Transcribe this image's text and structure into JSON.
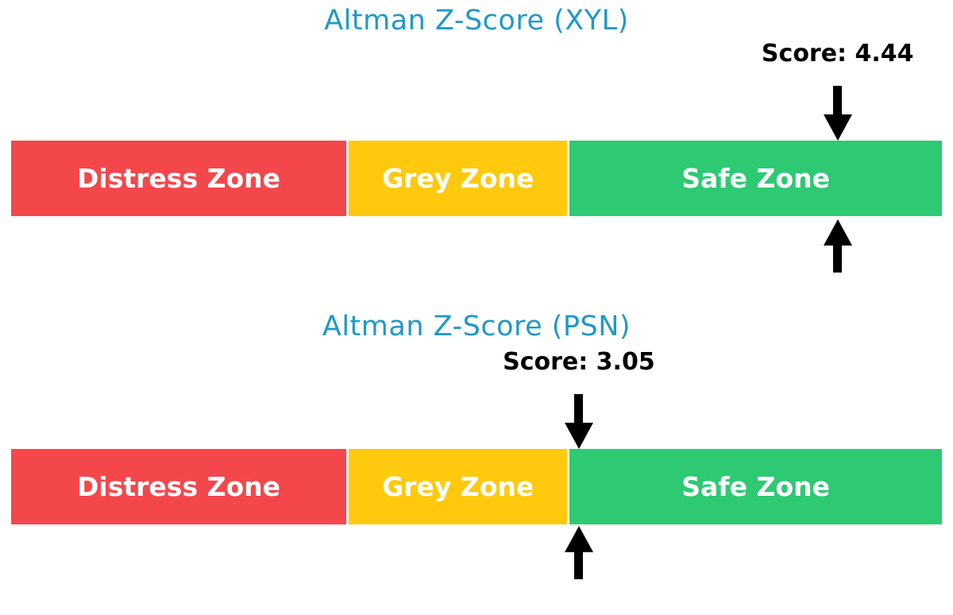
{
  "figure": {
    "background_color": "#FFFFFF",
    "title_color": "#2099C7",
    "score_text_color": "#000000",
    "zone_label_color": "#FFFFFF",
    "arrow_color": "#000000"
  },
  "chart_data": [
    {
      "type": "bar",
      "orientation": "horizontal",
      "title": "Altman Z-Score (XYL)",
      "ticker": "XYL",
      "score": 4.44,
      "score_label": "Score: 4.44",
      "axis_range": [
        0,
        5
      ],
      "grid": false,
      "axes_visible": false,
      "zones": [
        {
          "label": "Distress Zone",
          "from": 0,
          "to": 1.81,
          "color": "#F4474C"
        },
        {
          "label": "Grey Zone",
          "from": 1.81,
          "to": 2.99,
          "color": "#FFC90E"
        },
        {
          "label": "Safe Zone",
          "from": 2.99,
          "to": 5.0,
          "color": "#2EC973"
        }
      ],
      "annotations": [
        {
          "type": "down-arrow",
          "x": 4.44,
          "position": "above-bar"
        },
        {
          "type": "up-arrow",
          "x": 4.44,
          "position": "below-bar"
        }
      ]
    },
    {
      "type": "bar",
      "orientation": "horizontal",
      "title": "Altman Z-Score (PSN)",
      "ticker": "PSN",
      "score": 3.05,
      "score_label": "Score: 3.05",
      "axis_range": [
        0,
        5
      ],
      "grid": false,
      "axes_visible": false,
      "zones": [
        {
          "label": "Distress Zone",
          "from": 0,
          "to": 1.81,
          "color": "#F4474C"
        },
        {
          "label": "Grey Zone",
          "from": 1.81,
          "to": 2.99,
          "color": "#FFC90E"
        },
        {
          "label": "Safe Zone",
          "from": 2.99,
          "to": 5.0,
          "color": "#2EC973"
        }
      ],
      "annotations": [
        {
          "type": "down-arrow",
          "x": 3.05,
          "position": "above-bar"
        },
        {
          "type": "up-arrow",
          "x": 3.05,
          "position": "below-bar"
        }
      ]
    }
  ]
}
